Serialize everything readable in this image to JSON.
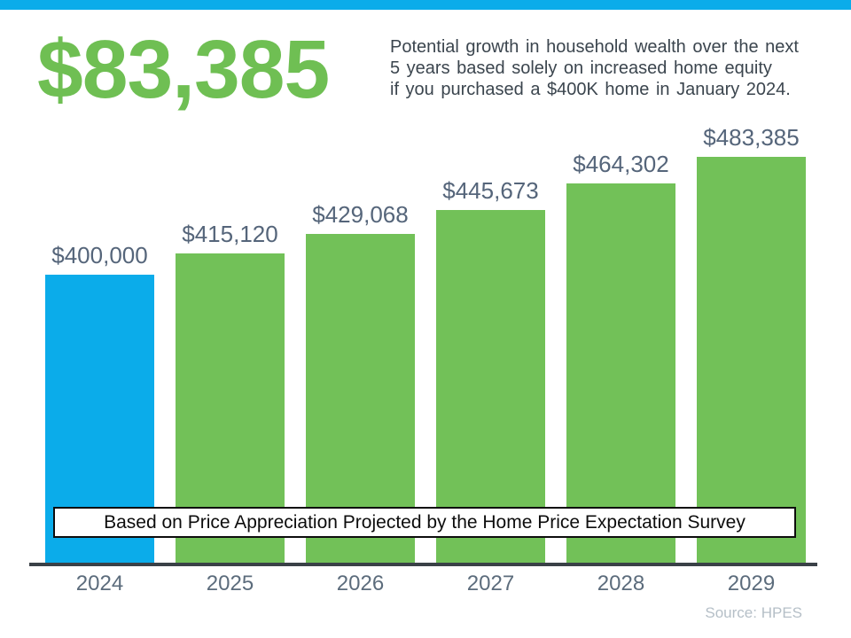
{
  "header": {
    "big_number": "$83,385",
    "description_lines": [
      "Potential growth in household wealth over the next",
      "5 years based solely on increased home equity",
      "if you purchased a $400K home in January 2024."
    ]
  },
  "colors": {
    "accent_green": "#6FBF53",
    "accent_blue": "#0BACEA",
    "bar_green": "#72C158",
    "axis_dark": "#3A4147",
    "label_slate": "#55657A"
  },
  "chart_data": {
    "type": "bar",
    "title": "",
    "xlabel": "",
    "ylabel": "",
    "categories": [
      "2024",
      "2025",
      "2026",
      "2027",
      "2028",
      "2029"
    ],
    "values": [
      400000,
      415120,
      429068,
      445673,
      464302,
      483385
    ],
    "value_labels": [
      "$400,000",
      "$415,120",
      "$429,068",
      "$445,673",
      "$464,302",
      "$483,385"
    ],
    "bar_colors": [
      "#0BACEA",
      "#72C158",
      "#72C158",
      "#72C158",
      "#72C158",
      "#72C158"
    ],
    "ylim": [
      196000,
      483385
    ],
    "grid": false,
    "legend": false,
    "banner": "Based on Price Appreciation Projected by the Home Price Expectation Survey"
  },
  "footer": {
    "source": "Source: HPES"
  }
}
